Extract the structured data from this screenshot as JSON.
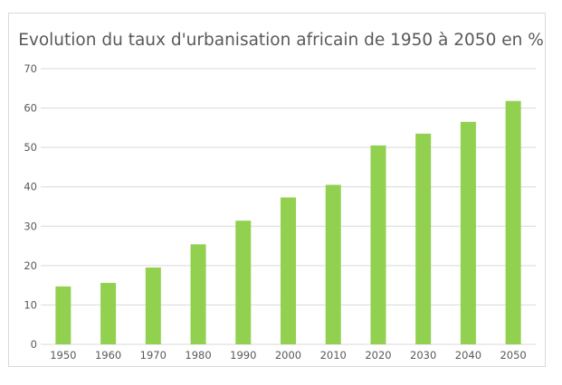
{
  "chart_data": {
    "type": "bar",
    "title": "Evolution du taux d'urbanisation africain de 1950 à 2050 en %",
    "xlabel": "",
    "ylabel": "",
    "categories": [
      "1950",
      "1960",
      "1970",
      "1980",
      "1990",
      "2000",
      "2010",
      "2020",
      "2030",
      "2040",
      "2050"
    ],
    "values": [
      14.7,
      15.6,
      19.5,
      25.4,
      31.4,
      37.3,
      40.5,
      50.5,
      53.5,
      56.5,
      61.8
    ],
    "ylim": [
      0,
      70
    ],
    "yticks": [
      0,
      10,
      20,
      30,
      40,
      50,
      60,
      70
    ],
    "grid": true,
    "legend": "none",
    "colors": {
      "bar": "#92d050",
      "grid": "#d9d9d9",
      "text": "#595959"
    }
  }
}
